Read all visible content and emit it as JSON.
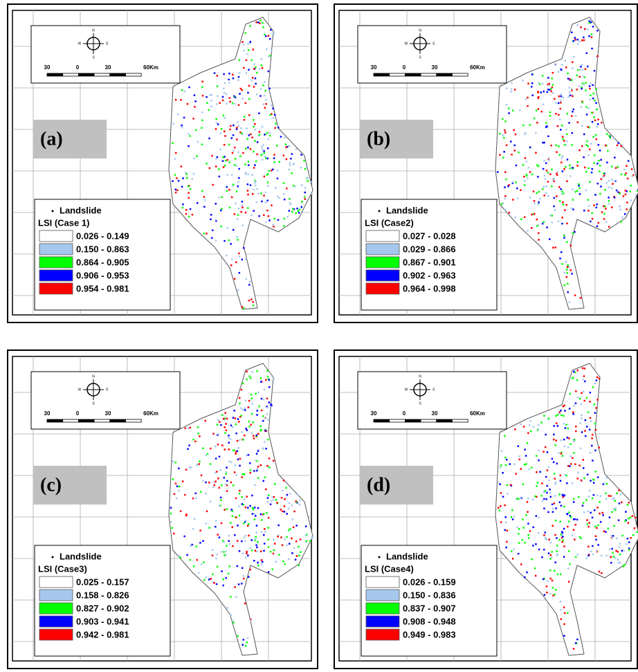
{
  "landslide_label": "Landslide",
  "scale_bar": {
    "labels": [
      "30",
      "0",
      "30",
      "60Km"
    ]
  },
  "compass": {
    "north": "N",
    "east": "E",
    "south": "S",
    "west": "W"
  },
  "panels": [
    {
      "label": "(a)",
      "legend_title": "LSI (Case 1)",
      "classes": [
        {
          "range": "0.026 - 0.149",
          "color": "#ffffff"
        },
        {
          "range": "0.150 - 0.863",
          "color": "#a6c8ee"
        },
        {
          "range": "0.864 - 0.905",
          "color": "#00ff00"
        },
        {
          "range": "0.906 - 0.953",
          "color": "#0000ff"
        },
        {
          "range": "0.954 - 0.981",
          "color": "#ff0000"
        }
      ]
    },
    {
      "label": "(b)",
      "legend_title": "LSI (Case2)",
      "classes": [
        {
          "range": "0.027 - 0.028",
          "color": "#ffffff"
        },
        {
          "range": "0.029 - 0.866",
          "color": "#a6c8ee"
        },
        {
          "range": "0.867 - 0.901",
          "color": "#00ff00"
        },
        {
          "range": "0.902 - 0.963",
          "color": "#0000ff"
        },
        {
          "range": "0.964 - 0.998",
          "color": "#ff0000"
        }
      ]
    },
    {
      "label": "(c)",
      "legend_title": "LSI (Case3)",
      "classes": [
        {
          "range": "0.025 - 0.157",
          "color": "#ffffff"
        },
        {
          "range": "0.158 - 0.826",
          "color": "#a6c8ee"
        },
        {
          "range": "0.827 - 0.902",
          "color": "#00ff00"
        },
        {
          "range": "0.903 - 0.941",
          "color": "#0000ff"
        },
        {
          "range": "0.942 - 0.981",
          "color": "#ff0000"
        }
      ]
    },
    {
      "label": "(d)",
      "legend_title": "LSI (Case4)",
      "classes": [
        {
          "range": "0.026 - 0.159",
          "color": "#ffffff"
        },
        {
          "range": "0.150 - 0.836",
          "color": "#a6c8ee"
        },
        {
          "range": "0.837 - 0.907",
          "color": "#00ff00"
        },
        {
          "range": "0.908 - 0.948",
          "color": "#0000ff"
        },
        {
          "range": "0.949 - 0.983",
          "color": "#ff0000"
        }
      ]
    }
  ]
}
